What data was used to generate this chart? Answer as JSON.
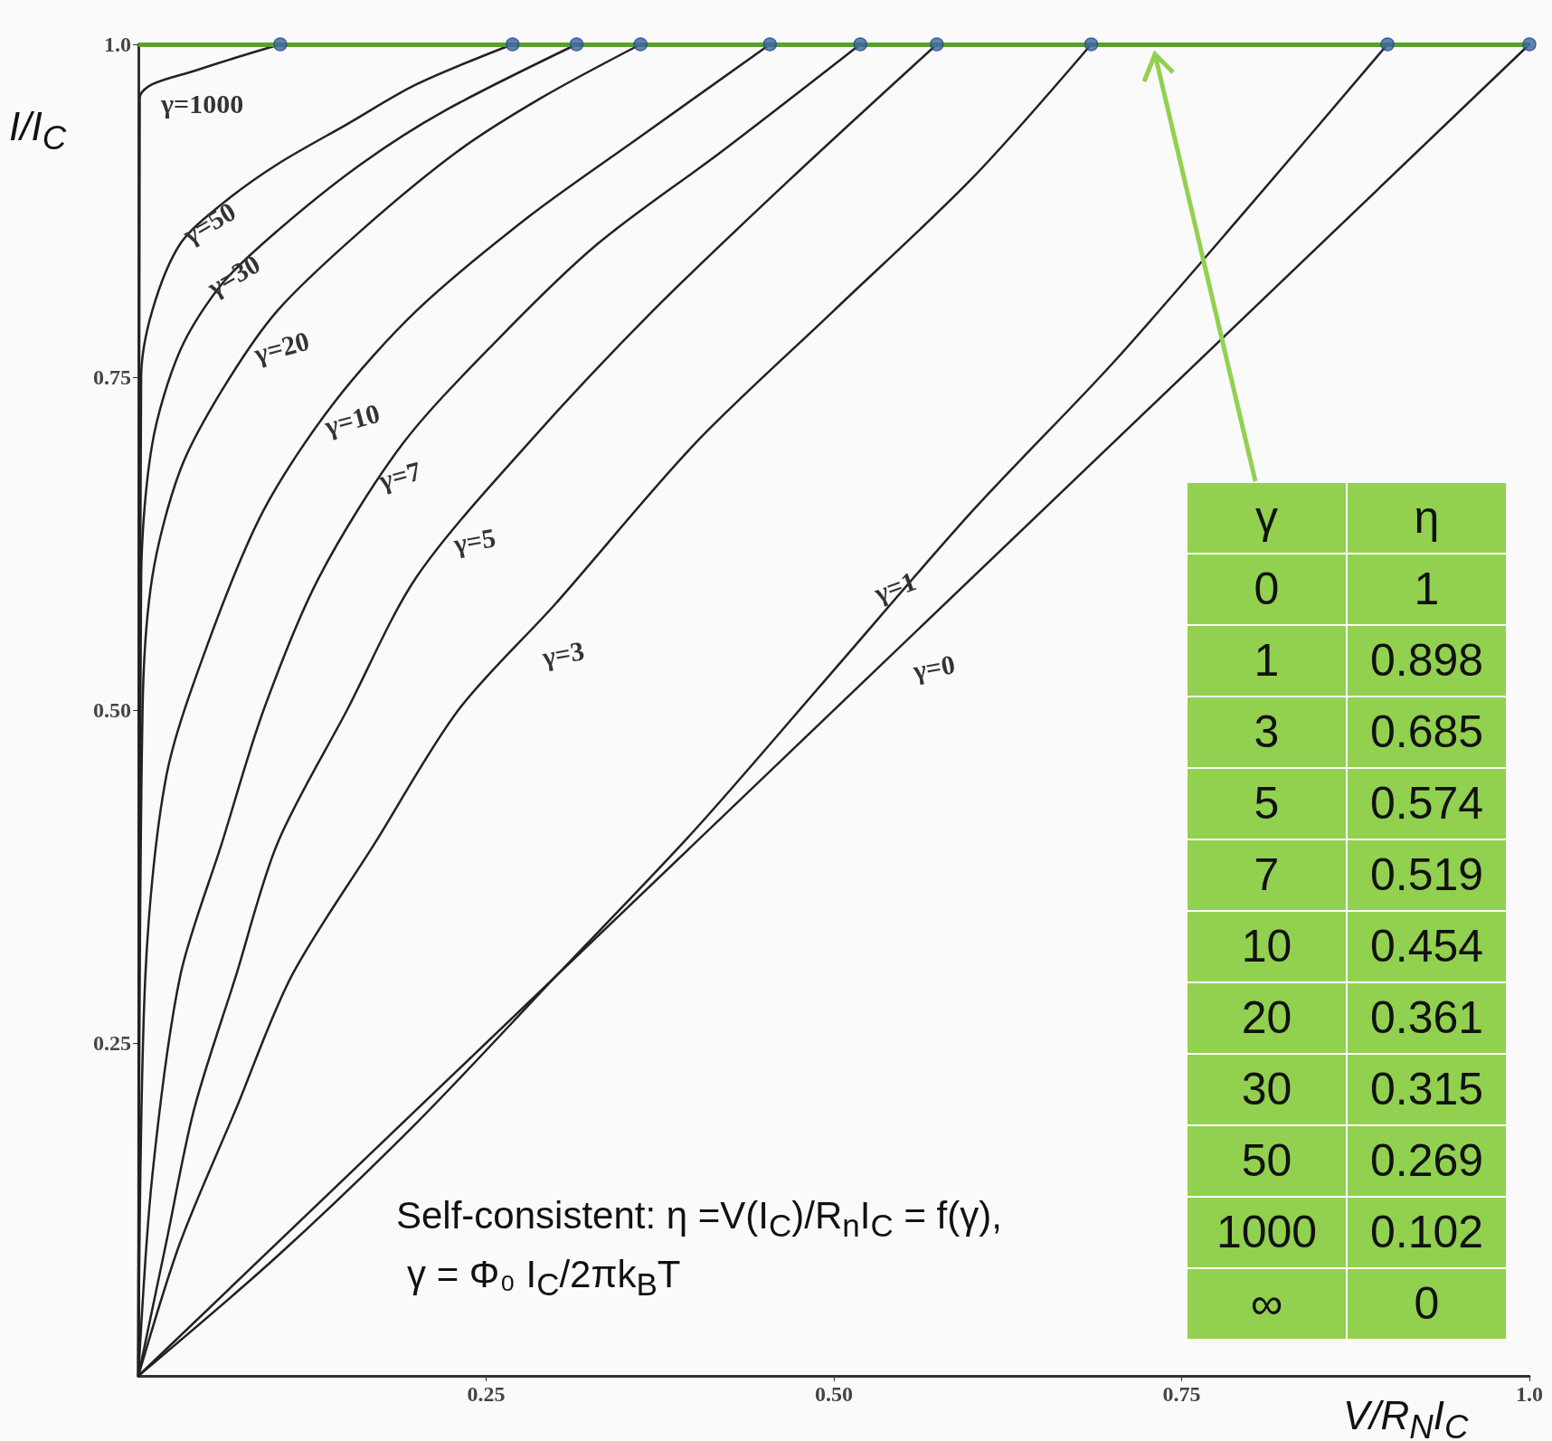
{
  "chart_data": [
    {
      "type": "line",
      "xlabel": "V/R$_{N}$I$_{C}$",
      "ylabel": "I/I$_{C}$",
      "xlim": [
        0,
        1
      ],
      "ylim": [
        0,
        1
      ],
      "xticks": [
        0.25,
        {
          "value": 0.5,
          "label": "0.50"
        },
        0.75,
        {
          "value": 1,
          "label": "1.0"
        }
      ],
      "yticks": [
        0.25,
        {
          "value": 0.5,
          "label": "0.50"
        },
        0.75,
        {
          "value": 1,
          "label": "1.0"
        }
      ],
      "grid": false,
      "marker": "none",
      "line_style": "solid",
      "series": [
        {
          "color": "#222222",
          "x": [
            0,
            1
          ],
          "values": [
            0,
            1
          ]
        },
        {
          "color": "#222222",
          "x": [
            0,
            0.1,
            0.2,
            0.3,
            0.4,
            0.5,
            0.6,
            0.7,
            0.8,
            0.898
          ],
          "values": [
            0,
            0.09,
            0.19,
            0.3,
            0.41,
            0.53,
            0.65,
            0.76,
            0.88,
            1
          ]
        },
        {
          "color": "#222222",
          "x": [
            0,
            0.03,
            0.07,
            0.11,
            0.17,
            0.23,
            0.3,
            0.4,
            0.5,
            0.6,
            0.685
          ],
          "values": [
            0,
            0.1,
            0.2,
            0.3,
            0.4,
            0.5,
            0.58,
            0.7,
            0.8,
            0.9,
            1
          ]
        },
        {
          "color": "#222222",
          "x": [
            0,
            0.02,
            0.04,
            0.07,
            0.1,
            0.15,
            0.2,
            0.28,
            0.37,
            0.47,
            0.574
          ],
          "values": [
            0,
            0.1,
            0.2,
            0.3,
            0.4,
            0.5,
            0.6,
            0.7,
            0.8,
            0.9,
            1
          ]
        },
        {
          "color": "#222222",
          "x": [
            0,
            0.01,
            0.03,
            0.06,
            0.09,
            0.13,
            0.19,
            0.26,
            0.33,
            0.42,
            0.519
          ],
          "values": [
            0,
            0.15,
            0.3,
            0.4,
            0.5,
            0.6,
            0.7,
            0.78,
            0.85,
            0.92,
            1
          ]
        },
        {
          "color": "#222222",
          "x": [
            0,
            0.005,
            0.02,
            0.05,
            0.09,
            0.14,
            0.2,
            0.28,
            0.36,
            0.454
          ],
          "values": [
            0,
            0.3,
            0.45,
            0.55,
            0.65,
            0.73,
            0.8,
            0.87,
            0.93,
            1
          ]
        },
        {
          "color": "#222222",
          "x": [
            0,
            0.003,
            0.01,
            0.03,
            0.06,
            0.1,
            0.16,
            0.23,
            0.29,
            0.361
          ],
          "values": [
            0,
            0.5,
            0.6,
            0.68,
            0.74,
            0.8,
            0.86,
            0.92,
            0.96,
            1
          ]
        },
        {
          "color": "#222222",
          "x": [
            0,
            0.002,
            0.01,
            0.03,
            0.06,
            0.1,
            0.16,
            0.22,
            0.315
          ],
          "values": [
            0,
            0.6,
            0.7,
            0.77,
            0.82,
            0.86,
            0.91,
            0.95,
            1
          ]
        },
        {
          "color": "#222222",
          "x": [
            0,
            0.002,
            0.01,
            0.03,
            0.06,
            0.1,
            0.15,
            0.2,
            0.269
          ],
          "values": [
            0,
            0.75,
            0.8,
            0.85,
            0.88,
            0.91,
            0.94,
            0.97,
            1
          ]
        },
        {
          "color": "#222222",
          "x": [
            0,
            0.001,
            0.01,
            0.04,
            0.07,
            0.102
          ],
          "values": [
            0,
            0.96,
            0.97,
            0.98,
            0.99,
            1
          ]
        },
        {
          "type": "scatter",
          "marker": "circle",
          "color": "#3b63a8",
          "x": [
            0.102,
            0.269,
            0.315,
            0.361,
            0.454,
            0.519,
            0.574,
            0.685,
            0.898,
            1
          ],
          "values": [
            1,
            1,
            1,
            1,
            1,
            1,
            1,
            1,
            1,
            1
          ]
        }
      ],
      "ref_lines": [
        {
          "axis": "y",
          "value": 1,
          "color": "#5aa02c"
        }
      ],
      "annotations": [
        "γ=1000",
        "γ=50",
        "γ=30",
        "γ=20",
        "γ=10",
        "γ=7",
        "γ=5",
        "γ=3",
        "γ=1",
        "γ=0",
        "Self-consistent: η =V(I$_{C}$)/R$_{n}$I$_{C}$ = f(γ),",
        "γ = Φ₀ I$_{C}$/2πk$_{B}$T"
      ]
    },
    {
      "type": "other",
      "annotations": [
        "γ",
        "η",
        "0",
        "1",
        "1",
        "0.898",
        "3",
        "0.685",
        "5",
        "0.574",
        "7",
        "0.519",
        "10",
        "0.454",
        "20",
        "0.361",
        "30",
        "0.315",
        "50",
        "0.269",
        "1000",
        "0.102",
        "∞",
        "0"
      ]
    }
  ]
}
